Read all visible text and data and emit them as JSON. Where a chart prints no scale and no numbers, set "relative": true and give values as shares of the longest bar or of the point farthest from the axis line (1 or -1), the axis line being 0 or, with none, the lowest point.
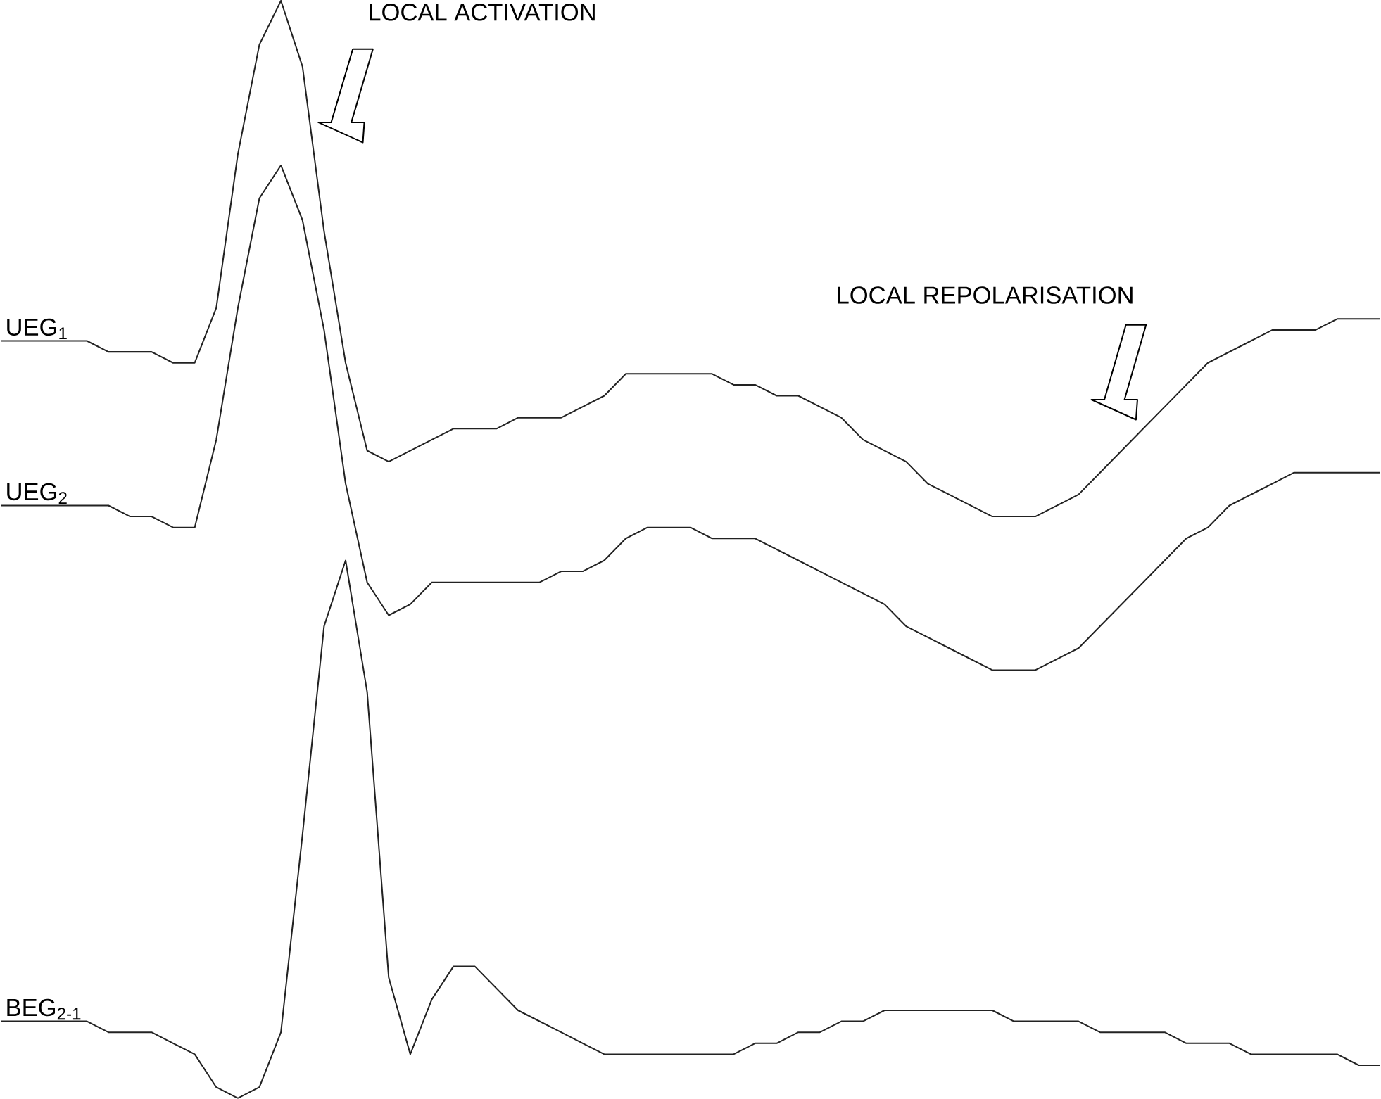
{
  "chart_data": {
    "type": "line",
    "relative": true,
    "categories": [
      null,
      null,
      null,
      null,
      null,
      null,
      null,
      null,
      null,
      null,
      null,
      null,
      null,
      null,
      null,
      null,
      null,
      null,
      null,
      null,
      null,
      null,
      null,
      null,
      null,
      null,
      null,
      null,
      null,
      null,
      null,
      null,
      null,
      null,
      null,
      null,
      null,
      null,
      null,
      null,
      null,
      null,
      null,
      null,
      null,
      null,
      null,
      null,
      null,
      null,
      null,
      null,
      null,
      null,
      null,
      null,
      null,
      null,
      null,
      null,
      null,
      null,
      null,
      null,
      null
    ],
    "series": [
      {
        "name": "UEG$_{1}$",
        "color": "#222222",
        "values": [
          0.69,
          0.69,
          0.69,
          0.69,
          0.69,
          0.68,
          0.68,
          0.68,
          0.67,
          0.67,
          0.72,
          0.86,
          0.96,
          1,
          0.94,
          0.79,
          0.67,
          0.59,
          0.58,
          0.59,
          0.6,
          0.61,
          0.61,
          0.61,
          0.62,
          0.62,
          0.62,
          0.63,
          0.64,
          0.66,
          0.66,
          0.66,
          0.66,
          0.66,
          0.65,
          0.65,
          0.64,
          0.64,
          0.63,
          0.62,
          0.6,
          0.59,
          0.58,
          0.56,
          0.55,
          0.54,
          0.53,
          0.53,
          0.53,
          0.54,
          0.55,
          0.57,
          0.59,
          0.61,
          0.63,
          0.65,
          0.67,
          0.68,
          0.69,
          0.7,
          0.7,
          0.7,
          0.71,
          0.71,
          0.71
        ]
      },
      {
        "name": "UEG$_{2}$",
        "color": "#222222",
        "values": [
          0.54,
          0.54,
          0.54,
          0.54,
          0.54,
          0.54,
          0.53,
          0.53,
          0.52,
          0.52,
          0.6,
          0.72,
          0.82,
          0.85,
          0.8,
          0.7,
          0.56,
          0.47,
          0.44,
          0.45,
          0.47,
          0.47,
          0.47,
          0.47,
          0.47,
          0.47,
          0.48,
          0.48,
          0.49,
          0.51,
          0.52,
          0.52,
          0.52,
          0.51,
          0.51,
          0.51,
          0.5,
          0.49,
          0.48,
          0.47,
          0.46,
          0.45,
          0.43,
          0.42,
          0.41,
          0.4,
          0.39,
          0.39,
          0.39,
          0.4,
          0.41,
          0.43,
          0.45,
          0.47,
          0.49,
          0.51,
          0.52,
          0.54,
          0.55,
          0.56,
          0.57,
          0.57,
          0.57,
          0.57,
          0.57
        ]
      },
      {
        "name": "BEG$_{2-1}$",
        "color": "#222222",
        "values": [
          0.07,
          0.07,
          0.07,
          0.07,
          0.07,
          0.06,
          0.06,
          0.06,
          0.05,
          0.04,
          0.01,
          0,
          0.01,
          0.06,
          0.24,
          0.43,
          0.49,
          0.37,
          0.11,
          0.04,
          0.09,
          0.12,
          0.12,
          0.1,
          0.08,
          0.07,
          0.06,
          0.05,
          0.04,
          0.04,
          0.04,
          0.04,
          0.04,
          0.04,
          0.04,
          0.05,
          0.05,
          0.06,
          0.06,
          0.07,
          0.07,
          0.08,
          0.08,
          0.08,
          0.08,
          0.08,
          0.08,
          0.07,
          0.07,
          0.07,
          0.07,
          0.06,
          0.06,
          0.06,
          0.06,
          0.05,
          0.05,
          0.05,
          0.04,
          0.04,
          0.04,
          0.04,
          0.04,
          0.03,
          0.03
        ]
      }
    ],
    "annotations": [
      "LOCAL ACTIVATION",
      "LOCAL REPOLARISATION"
    ]
  }
}
